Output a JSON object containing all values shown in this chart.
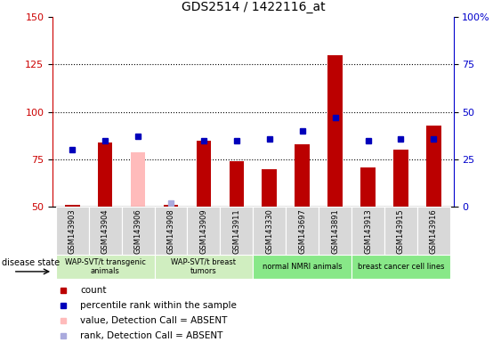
{
  "title": "GDS2514 / 1422116_at",
  "samples": [
    "GSM143903",
    "GSM143904",
    "GSM143906",
    "GSM143908",
    "GSM143909",
    "GSM143911",
    "GSM143330",
    "GSM143697",
    "GSM143891",
    "GSM143913",
    "GSM143915",
    "GSM143916"
  ],
  "count_values": [
    51,
    84,
    79,
    51,
    85,
    74,
    70,
    83,
    130,
    71,
    80,
    93
  ],
  "percentile_values": [
    30,
    35,
    37,
    2,
    35,
    35,
    36,
    40,
    47,
    35,
    36,
    36
  ],
  "absent_value_idx": [
    2
  ],
  "absent_rank_idx": [
    3
  ],
  "ylim_left": [
    50,
    150
  ],
  "ylim_right": [
    0,
    100
  ],
  "yticks_left": [
    50,
    75,
    100,
    125,
    150
  ],
  "yticks_right": [
    0,
    25,
    50,
    75,
    100
  ],
  "bar_color": "#bb0000",
  "dot_color": "#0000bb",
  "absent_bar_color": "#ffbbbb",
  "absent_dot_color": "#aaaadd",
  "group_info": [
    {
      "label": "WAP-SVT/t transgenic\nanimals",
      "start": 0,
      "end": 2,
      "color": "#d0eec0"
    },
    {
      "label": "WAP-SVT/t breast\ntumors",
      "start": 3,
      "end": 5,
      "color": "#d0eec0"
    },
    {
      "label": "normal NMRI animals",
      "start": 6,
      "end": 8,
      "color": "#88e888"
    },
    {
      "label": "breast cancer cell lines",
      "start": 9,
      "end": 11,
      "color": "#88e888"
    }
  ],
  "bg_color": "#ffffff",
  "tick_color_left": "#cc0000",
  "tick_color_right": "#0000cc",
  "legend_items": [
    {
      "color": "#bb0000",
      "label": "count"
    },
    {
      "color": "#0000bb",
      "label": "percentile rank within the sample"
    },
    {
      "color": "#ffbbbb",
      "label": "value, Detection Call = ABSENT"
    },
    {
      "color": "#aaaadd",
      "label": "rank, Detection Call = ABSENT"
    }
  ]
}
